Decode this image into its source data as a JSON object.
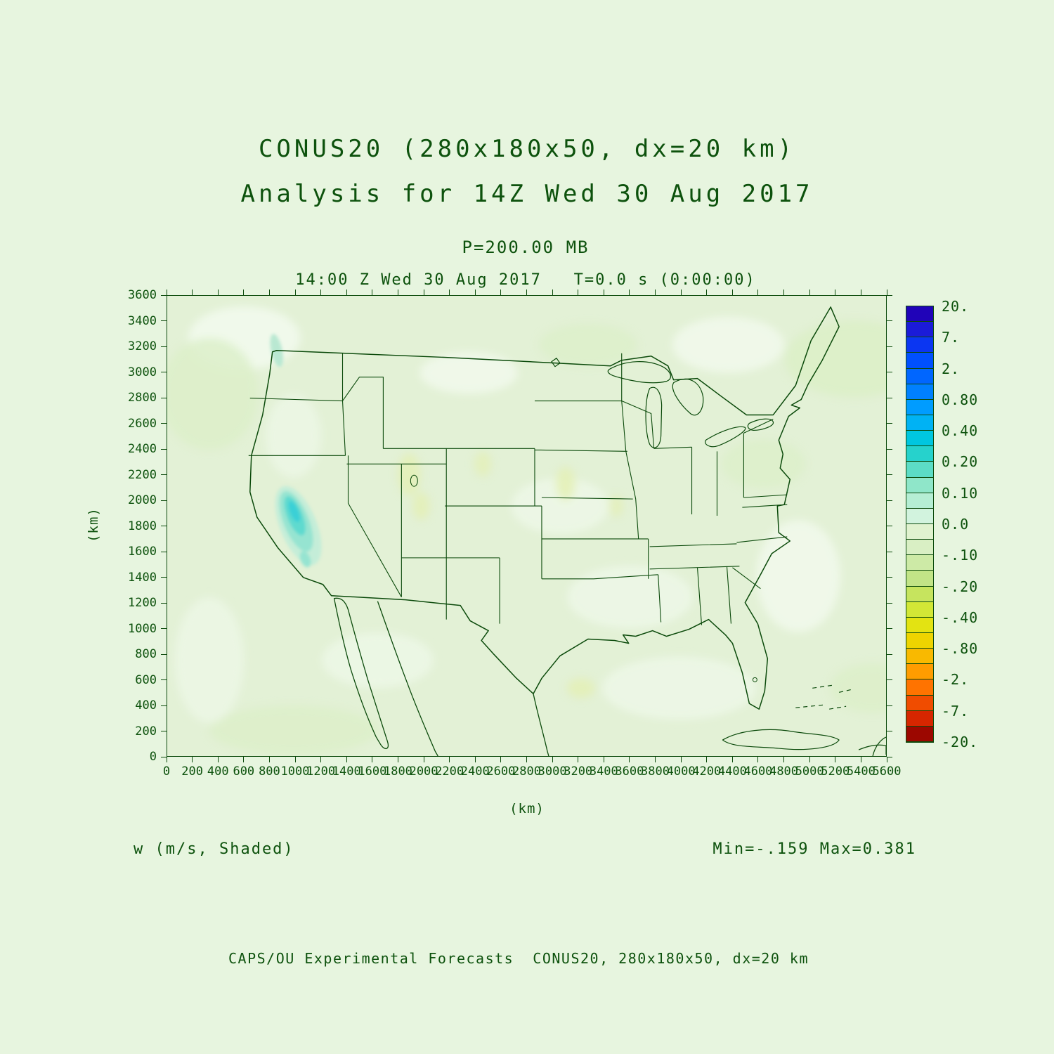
{
  "page": {
    "background": "#e7f5df",
    "ink": "#0b4a0b"
  },
  "header": {
    "title_line1": "CONUS20 (280x180x50, dx=20 km)",
    "title_line2": "Analysis for 14Z Wed 30 Aug 2017",
    "level_line": "P=200.00 MB",
    "time_line": "14:00 Z Wed 30 Aug 2017   T=0.0 s (0:00:00)"
  },
  "axes": {
    "x_label": "(km)",
    "y_label": "(km)",
    "x_ticks": [
      0,
      200,
      400,
      600,
      800,
      1000,
      1200,
      1400,
      1600,
      1800,
      2000,
      2200,
      2400,
      2600,
      2800,
      3000,
      3200,
      3400,
      3600,
      3800,
      4000,
      4200,
      4400,
      4600,
      4800,
      5000,
      5200,
      5400,
      5600
    ],
    "y_ticks": [
      0,
      200,
      400,
      600,
      800,
      1000,
      1200,
      1400,
      1600,
      1800,
      2000,
      2200,
      2400,
      2600,
      2800,
      3000,
      3200,
      3400,
      3600
    ]
  },
  "colorbar": {
    "labels": [
      "20.",
      "7.",
      "2.",
      "0.80",
      "0.40",
      "0.20",
      "0.10",
      "0.0",
      "-.10",
      "-.20",
      "-.40",
      "-.80",
      "-2.",
      "-7.",
      "-20."
    ],
    "cells": [
      "#2003b8",
      "#1b1bd8",
      "#0b36f2",
      "#0050ff",
      "#0066ff",
      "#0080ff",
      "#009cff",
      "#00b2f4",
      "#00c6e0",
      "#26d2cc",
      "#5cdcc6",
      "#8fe6c9",
      "#b5eed4",
      "#d2f3de",
      "#e0f2cf",
      "#d9efc4",
      "#cdeaa6",
      "#c2e487",
      "#c6e45e",
      "#d2e736",
      "#e3e312",
      "#eed400",
      "#f9b900",
      "#ff9c00",
      "#ff7300",
      "#f04c00",
      "#d62600",
      "#9c0700"
    ]
  },
  "footer": {
    "field_label": "w (m/s, Shaded)",
    "minmax_label": "Min=-.159 Max=0.381",
    "credit_line": "CAPS/OU Experimental Forecasts  CONUS20, 280x180x50, dx=20 km"
  },
  "chart_data": {
    "type": "heatmap",
    "title": "CONUS20 (280x180x50, dx=20 km) — Analysis for 14Z Wed 30 Aug 2017",
    "variable": "w (vertical velocity), shaded",
    "units": "m/s",
    "pressure_level_mb": 200.0,
    "valid_time": "14:00 Z Wed 30 Aug 2017",
    "forecast_time_s": 0.0,
    "forecast_time_hms": "0:00:00",
    "xlabel": "(km)",
    "ylabel": "(km)",
    "xlim": [
      0,
      5600
    ],
    "ylim": [
      0,
      3600
    ],
    "x_tick_step": 200,
    "y_tick_step": 200,
    "min_value": -0.159,
    "max_value": 0.381,
    "colorbar_levels": [
      20,
      7,
      2,
      0.8,
      0.4,
      0.2,
      0.1,
      0.0,
      -0.1,
      -0.2,
      -0.4,
      -0.8,
      -2,
      -7,
      -20
    ],
    "legend_position": "right vertical colorbar",
    "grid": false,
    "basemap": "CONUS with US state boundaries, Great Lakes, Canada/Mexico borders, Baja California, Gulf coast and Cuba coastlines, drawn in dark green",
    "field_description": "Field is near zero (pale green, 0.0 to 0.10 band) over almost the entire domain. A localized positive updraft maximum (~0.38 m/s, cyan/teal shading up to the 0.20-0.40 band) is elongated NNW-SSE along the Sierra Nevada of eastern California / western Nevada near x=900-1100 km, y=1600-2100 km. Faint yellow-green negative patches (to -0.159 m/s) are scattered over the Rockies, Great Basin and High Plains."
  }
}
